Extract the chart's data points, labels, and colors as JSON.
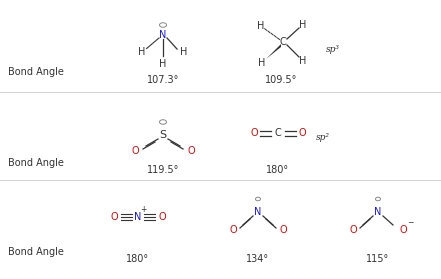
{
  "bg_color": "#ffffff",
  "black": "#333333",
  "blue": "#1a1acc",
  "red": "#cc1111",
  "darkgray": "#555555",
  "bond_angle_label": "Bond Angle",
  "r1_mol1_label": "107.3°",
  "r1_mol2_label": "109.5°",
  "r1_hybrid": "sp³",
  "r2_mol1_label": "119.5°",
  "r2_mol2_label": "180°",
  "r2_hybrid": "sp²",
  "r3_mol1_label": "180°",
  "r3_mol2_label": "134°",
  "r3_mol3_label": "115°",
  "figw": 4.41,
  "figh": 2.79,
  "dpi": 100
}
